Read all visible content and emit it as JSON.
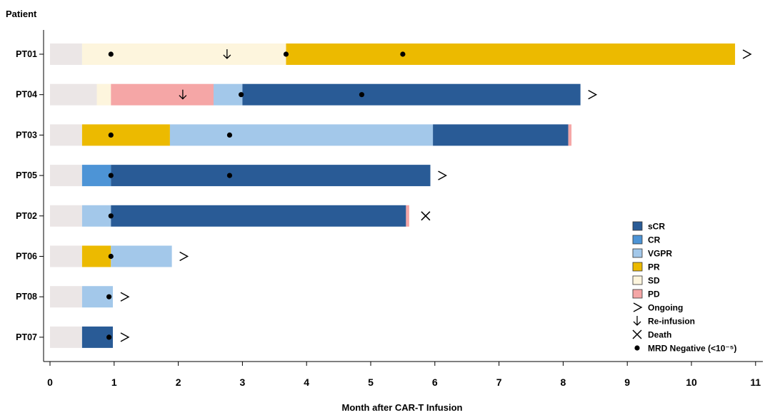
{
  "chart_data": {
    "type": "swimmer",
    "y_title": "Patient",
    "xlabel": "Month after CAR-T Infusion",
    "xlim": [
      0,
      11
    ],
    "xticks": [
      0,
      1,
      2,
      3,
      4,
      5,
      6,
      7,
      8,
      9,
      10,
      11
    ],
    "grid": false,
    "legend_position": "bottom-right",
    "colors": {
      "baseline": "#ebe6e6",
      "sCR": "#295b96",
      "CR": "#4d94d6",
      "VGPR": "#a3c8ea",
      "PR": "#ecba00",
      "SD": "#fdf5dd",
      "PD": "#f5a6a6"
    },
    "legend": [
      {
        "label": "sCR",
        "kind": "swatch",
        "key": "sCR"
      },
      {
        "label": "CR",
        "kind": "swatch",
        "key": "CR"
      },
      {
        "label": "VGPR",
        "kind": "swatch",
        "key": "VGPR"
      },
      {
        "label": "PR",
        "kind": "swatch",
        "key": "PR"
      },
      {
        "label": "SD",
        "kind": "swatch",
        "key": "SD"
      },
      {
        "label": "PD",
        "kind": "swatch",
        "key": "PD"
      },
      {
        "label": "Ongoing",
        "kind": "ongoing"
      },
      {
        "label": "Re-infusion",
        "kind": "reinfusion"
      },
      {
        "label": "Death",
        "kind": "death"
      },
      {
        "label": "MRD Negative (<10⁻⁵)",
        "kind": "mrd"
      }
    ],
    "patients": [
      {
        "id": "PT01",
        "segments": [
          {
            "state": "baseline",
            "start": 0,
            "end": 0.5
          },
          {
            "state": "SD",
            "start": 0.5,
            "end": 3.68
          },
          {
            "state": "PR",
            "start": 3.68,
            "end": 10.68
          }
        ],
        "mrd": [
          0.95,
          3.68,
          5.5
        ],
        "reinfusion": [
          2.76
        ],
        "end_marker": "ongoing"
      },
      {
        "id": "PT04",
        "segments": [
          {
            "state": "baseline",
            "start": 0,
            "end": 0.73
          },
          {
            "state": "SD",
            "start": 0.73,
            "end": 0.95
          },
          {
            "state": "PD",
            "start": 0.95,
            "end": 2.55
          },
          {
            "state": "VGPR",
            "start": 2.55,
            "end": 3.0
          },
          {
            "state": "sCR",
            "start": 3.0,
            "end": 8.27
          }
        ],
        "mrd": [
          2.98,
          4.86
        ],
        "reinfusion": [
          2.07
        ],
        "end_marker": "ongoing"
      },
      {
        "id": "PT03",
        "segments": [
          {
            "state": "baseline",
            "start": 0,
            "end": 0.5
          },
          {
            "state": "PR",
            "start": 0.5,
            "end": 1.87
          },
          {
            "state": "VGPR",
            "start": 1.87,
            "end": 5.97
          },
          {
            "state": "sCR",
            "start": 5.97,
            "end": 8.08
          },
          {
            "state": "PD",
            "start": 8.08,
            "end": 8.13
          }
        ],
        "mrd": [
          0.95,
          2.8
        ],
        "reinfusion": [],
        "end_marker": "none"
      },
      {
        "id": "PT05",
        "segments": [
          {
            "state": "baseline",
            "start": 0,
            "end": 0.5
          },
          {
            "state": "CR",
            "start": 0.5,
            "end": 0.95
          },
          {
            "state": "sCR",
            "start": 0.95,
            "end": 5.93
          }
        ],
        "mrd": [
          0.95,
          2.8
        ],
        "reinfusion": [],
        "end_marker": "ongoing"
      },
      {
        "id": "PT02",
        "segments": [
          {
            "state": "baseline",
            "start": 0,
            "end": 0.5
          },
          {
            "state": "VGPR",
            "start": 0.5,
            "end": 0.95
          },
          {
            "state": "sCR",
            "start": 0.95,
            "end": 5.55
          },
          {
            "state": "PD",
            "start": 5.55,
            "end": 5.6
          }
        ],
        "mrd": [
          0.95
        ],
        "reinfusion": [],
        "end_marker": "death"
      },
      {
        "id": "PT06",
        "segments": [
          {
            "state": "baseline",
            "start": 0,
            "end": 0.5
          },
          {
            "state": "PR",
            "start": 0.5,
            "end": 0.95
          },
          {
            "state": "VGPR",
            "start": 0.95,
            "end": 1.9
          }
        ],
        "mrd": [
          0.95
        ],
        "reinfusion": [],
        "end_marker": "ongoing"
      },
      {
        "id": "PT08",
        "segments": [
          {
            "state": "baseline",
            "start": 0,
            "end": 0.5
          },
          {
            "state": "VGPR",
            "start": 0.5,
            "end": 0.98
          }
        ],
        "mrd": [
          0.92
        ],
        "reinfusion": [],
        "end_marker": "ongoing"
      },
      {
        "id": "PT07",
        "segments": [
          {
            "state": "baseline",
            "start": 0,
            "end": 0.5
          },
          {
            "state": "sCR",
            "start": 0.5,
            "end": 0.98
          }
        ],
        "mrd": [
          0.92
        ],
        "reinfusion": [],
        "end_marker": "ongoing"
      }
    ]
  }
}
